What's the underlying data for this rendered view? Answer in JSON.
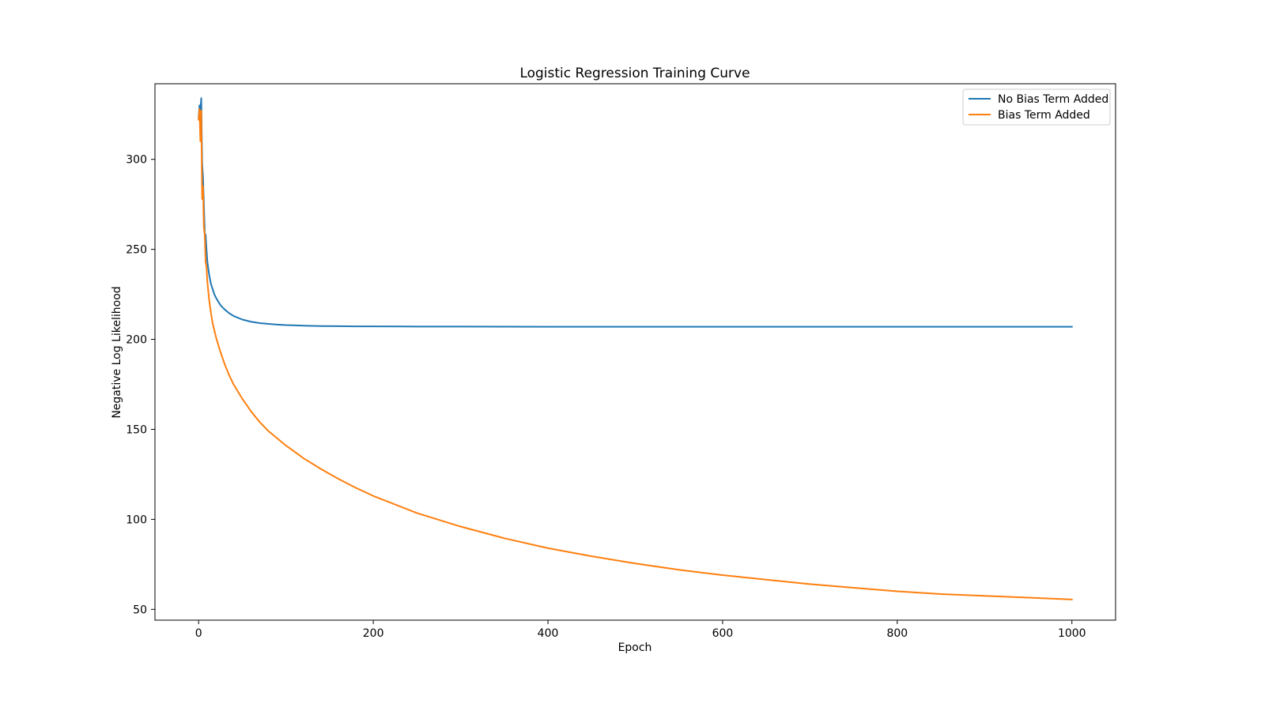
{
  "chart_data": {
    "type": "line",
    "title": "Logistic Regression Training Curve",
    "xlabel": "Epoch",
    "ylabel": "Negative Log Likelihood",
    "xlim": [
      -50,
      1050
    ],
    "ylim": [
      44,
      342
    ],
    "x_ticks": [
      0,
      200,
      400,
      600,
      800,
      1000
    ],
    "y_ticks": [
      50,
      100,
      150,
      200,
      250,
      300
    ],
    "grid": false,
    "legend_position": "top-right",
    "series": [
      {
        "name": "No Bias Term Added",
        "color": "#1f77b4",
        "x": [
          0,
          1,
          2,
          3,
          4,
          5,
          6,
          7,
          8,
          9,
          10,
          12,
          14,
          16,
          18,
          20,
          25,
          30,
          35,
          40,
          50,
          60,
          70,
          80,
          90,
          100,
          120,
          140,
          160,
          180,
          200,
          250,
          300,
          400,
          500,
          600,
          700,
          800,
          900,
          1000
        ],
        "values": [
          323,
          330,
          327,
          334,
          298,
          290,
          275,
          259,
          258,
          250,
          243,
          236,
          231,
          228,
          225,
          223,
          219,
          216.5,
          214.5,
          213,
          211,
          209.8,
          209,
          208.6,
          208.2,
          207.9,
          207.6,
          207.4,
          207.3,
          207.2,
          207.2,
          207.1,
          207.1,
          207.0,
          207.0,
          207.0,
          207.0,
          207.0,
          207.0,
          207.0
        ]
      },
      {
        "name": "Bias Term Added",
        "color": "#ff7f0e",
        "x": [
          0,
          1,
          2,
          3,
          4,
          5,
          6,
          7,
          8,
          9,
          10,
          12,
          14,
          16,
          18,
          20,
          25,
          30,
          35,
          40,
          50,
          60,
          70,
          80,
          90,
          100,
          120,
          140,
          160,
          180,
          200,
          250,
          300,
          350,
          400,
          450,
          500,
          550,
          600,
          650,
          700,
          750,
          800,
          850,
          900,
          950,
          1000
        ],
        "values": [
          322,
          328,
          310,
          327,
          278,
          285,
          262,
          258,
          243,
          240,
          232,
          222,
          215,
          209,
          205,
          201,
          193,
          186,
          180,
          175,
          167,
          160,
          154,
          149,
          145,
          141,
          134,
          128,
          122.5,
          117.5,
          113,
          103.5,
          96,
          89.5,
          84,
          79.5,
          75.5,
          72,
          69,
          66.5,
          64,
          62,
          60,
          58.5,
          57.5,
          56.5,
          55.5
        ]
      }
    ]
  }
}
